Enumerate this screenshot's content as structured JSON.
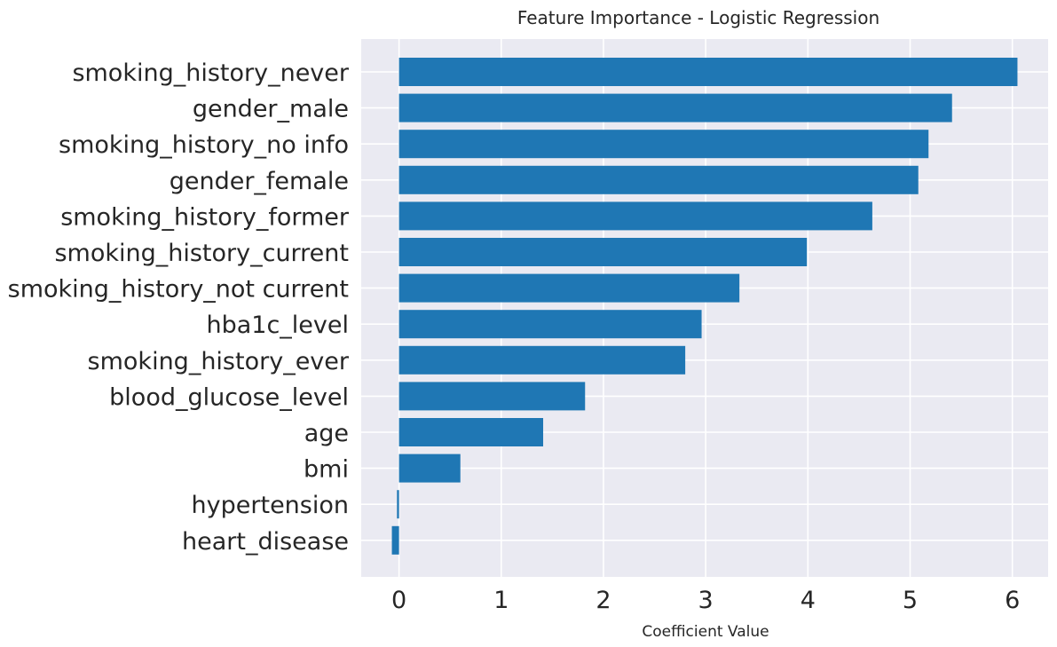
{
  "chart_data": {
    "type": "bar",
    "orientation": "horizontal",
    "title": "Feature Importance - Logistic Regression",
    "xlabel": "Coefficient Value",
    "ylabel": "",
    "categories": [
      "smoking_history_never",
      "gender_male",
      "smoking_history_no info",
      "gender_female",
      "smoking_history_former",
      "smoking_history_current",
      "smoking_history_not current",
      "hba1c_level",
      "smoking_history_ever",
      "blood_glucose_level",
      "age",
      "bmi",
      "hypertension",
      "heart_disease"
    ],
    "values": [
      6.05,
      5.41,
      5.18,
      5.08,
      4.63,
      3.99,
      3.33,
      2.96,
      2.8,
      1.82,
      1.41,
      0.6,
      -0.02,
      -0.07
    ],
    "xlim": [
      -0.37,
      6.35
    ],
    "xticks": [
      "0",
      "1",
      "2",
      "3",
      "4",
      "5",
      "6"
    ],
    "grid": true,
    "bar_color": "#1f77b4",
    "background_color": "#eaeaf2",
    "grid_color": "#ffffff"
  }
}
